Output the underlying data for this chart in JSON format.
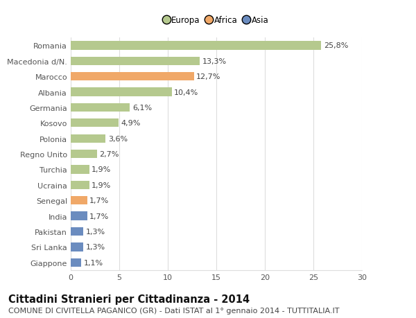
{
  "categories": [
    "Romania",
    "Macedonia d/N.",
    "Marocco",
    "Albania",
    "Germania",
    "Kosovo",
    "Polonia",
    "Regno Unito",
    "Turchia",
    "Ucraina",
    "Senegal",
    "India",
    "Pakistan",
    "Sri Lanka",
    "Giappone"
  ],
  "values": [
    25.8,
    13.3,
    12.7,
    10.4,
    6.1,
    4.9,
    3.6,
    2.7,
    1.9,
    1.9,
    1.7,
    1.7,
    1.3,
    1.3,
    1.1
  ],
  "labels": [
    "25,8%",
    "13,3%",
    "12,7%",
    "10,4%",
    "6,1%",
    "4,9%",
    "3,6%",
    "2,7%",
    "1,9%",
    "1,9%",
    "1,7%",
    "1,7%",
    "1,3%",
    "1,3%",
    "1,1%"
  ],
  "continent": [
    "Europa",
    "Europa",
    "Africa",
    "Europa",
    "Europa",
    "Europa",
    "Europa",
    "Europa",
    "Europa",
    "Europa",
    "Africa",
    "Asia",
    "Asia",
    "Asia",
    "Asia"
  ],
  "colors": {
    "Europa": "#b5c98e",
    "Africa": "#f0a868",
    "Asia": "#6b8cbf"
  },
  "legend_labels": [
    "Europa",
    "Africa",
    "Asia"
  ],
  "legend_colors": [
    "#b5c98e",
    "#f0a868",
    "#6b8cbf"
  ],
  "title": "Cittadini Stranieri per Cittadinanza - 2014",
  "subtitle": "COMUNE DI CIVITELLA PAGANICO (GR) - Dati ISTAT al 1° gennaio 2014 - TUTTITALIA.IT",
  "xlim": [
    0,
    30
  ],
  "xticks": [
    0,
    5,
    10,
    15,
    20,
    25,
    30
  ],
  "background_color": "#ffffff",
  "grid_color": "#dddddd",
  "bar_height": 0.55,
  "label_fontsize": 8,
  "title_fontsize": 10.5,
  "subtitle_fontsize": 8,
  "tick_fontsize": 8,
  "axis_label_color": "#555555"
}
